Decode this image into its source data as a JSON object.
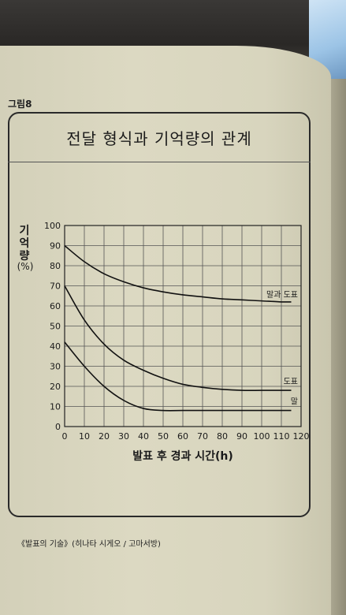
{
  "figure_label": "그림8",
  "source": "《발표의 기술》(히나타 시게오 / 고마서방)",
  "chart_data": {
    "type": "line",
    "title": "전달 형식과 기억량의 관계",
    "ylabel_lines": [
      "기",
      "억",
      "량",
      "(%)"
    ],
    "xlabel": "발표 후 경과 시간(h)",
    "xlim": [
      0,
      120
    ],
    "ylim": [
      0,
      100
    ],
    "xticks": [
      0,
      10,
      20,
      30,
      40,
      50,
      60,
      70,
      80,
      90,
      100,
      110,
      120
    ],
    "yticks": [
      0,
      10,
      20,
      30,
      40,
      50,
      60,
      70,
      80,
      90,
      100
    ],
    "grid": true,
    "series": [
      {
        "name": "말과 도표",
        "x": [
          0,
          10,
          20,
          30,
          40,
          50,
          60,
          70,
          80,
          90,
          100,
          110,
          115
        ],
        "y": [
          90,
          82,
          76,
          72,
          69,
          67,
          65.5,
          64.5,
          63.5,
          63,
          62.5,
          62,
          62
        ]
      },
      {
        "name": "도표",
        "x": [
          0,
          10,
          20,
          30,
          40,
          50,
          60,
          70,
          80,
          90,
          100,
          110,
          115
        ],
        "y": [
          70,
          53,
          41,
          33,
          28,
          24,
          21,
          19.5,
          18.5,
          18,
          18,
          18,
          18
        ]
      },
      {
        "name": "말",
        "x": [
          0,
          10,
          20,
          30,
          40,
          50,
          60,
          70,
          80,
          90,
          100,
          110,
          115
        ],
        "y": [
          42,
          30,
          20,
          13,
          9,
          8,
          8,
          8,
          8,
          8,
          8,
          8,
          8
        ]
      }
    ]
  }
}
